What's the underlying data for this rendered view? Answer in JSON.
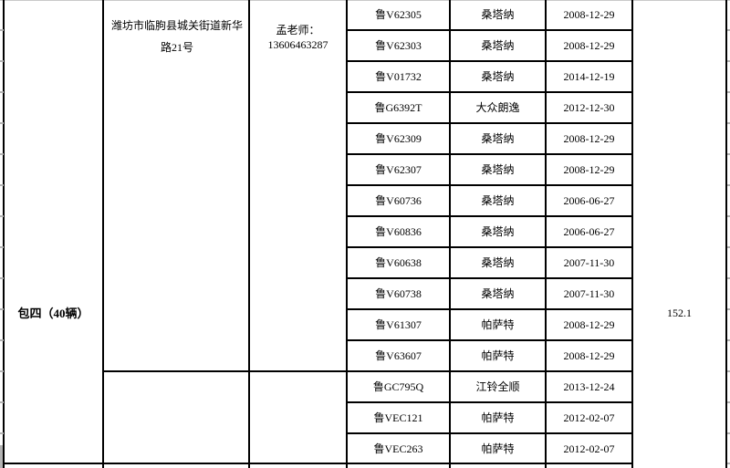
{
  "colors": {
    "grid": "#000000",
    "edge_tick_gray": "#b3b3b3",
    "top_gridline_gray": "#c9c9c9",
    "text": "#000000",
    "background": "#ffffff"
  },
  "table": {
    "package_label": "包四（40辆）",
    "total_value": "152.1",
    "groups": [
      {
        "address": "潍坊市临朐县城关街道新华路21号",
        "contact_line1": "孟老师：",
        "contact_line2": "13606463287",
        "rows": [
          {
            "plate": "鲁V62305",
            "model": "桑塔纳",
            "date": "2008-12-29"
          },
          {
            "plate": "鲁V62303",
            "model": "桑塔纳",
            "date": "2008-12-29"
          },
          {
            "plate": "鲁V01732",
            "model": "桑塔纳",
            "date": "2014-12-19"
          },
          {
            "plate": "鲁G6392T",
            "model": "大众朗逸",
            "date": "2012-12-30"
          },
          {
            "plate": "鲁V62309",
            "model": "桑塔纳",
            "date": "2008-12-29"
          },
          {
            "plate": "鲁V62307",
            "model": "桑塔纳",
            "date": "2008-12-29"
          },
          {
            "plate": "鲁V60736",
            "model": "桑塔纳",
            "date": "2006-06-27"
          },
          {
            "plate": "鲁V60836",
            "model": "桑塔纳",
            "date": "2006-06-27"
          },
          {
            "plate": "鲁V60638",
            "model": "桑塔纳",
            "date": "2007-11-30"
          },
          {
            "plate": "鲁V60738",
            "model": "桑塔纳",
            "date": "2007-11-30"
          },
          {
            "plate": "鲁V61307",
            "model": "帕萨特",
            "date": "2008-12-29"
          },
          {
            "plate": "鲁V63607",
            "model": "帕萨特",
            "date": "2008-12-29"
          }
        ]
      },
      {
        "address": "",
        "contact_line1": "",
        "contact_line2": "",
        "rows": [
          {
            "plate": "鲁GC795Q",
            "model": "江铃全顺",
            "date": "2013-12-24"
          },
          {
            "plate": "鲁VEC121",
            "model": "帕萨特",
            "date": "2012-02-07"
          },
          {
            "plate": "鲁VEC263",
            "model": "帕萨特",
            "date": "2012-02-07"
          }
        ]
      }
    ]
  }
}
